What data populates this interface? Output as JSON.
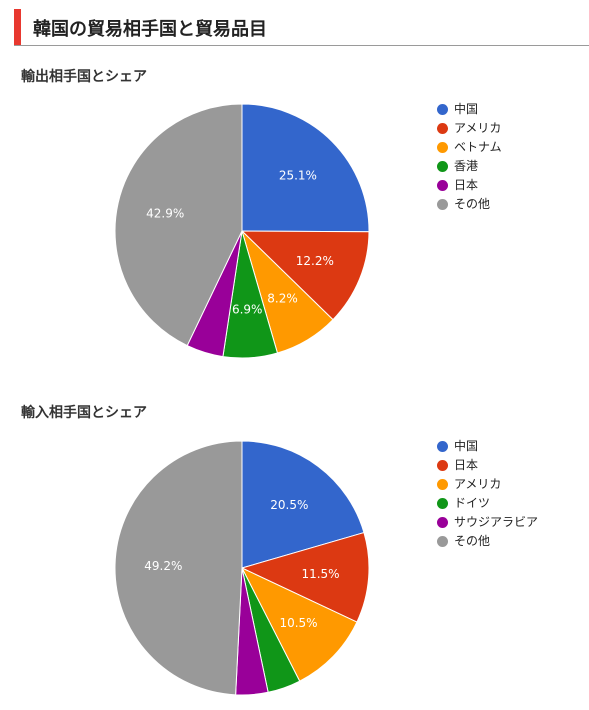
{
  "header": {
    "title": "韓国の貿易相手国と貿易品目"
  },
  "chart_data": [
    {
      "type": "pie",
      "title": "輸出相手国とシェア",
      "legend_position": "right",
      "slices": [
        {
          "label": "中国",
          "value": 25.1,
          "color": "#3366cc",
          "value_label": "25.1%"
        },
        {
          "label": "アメリカ",
          "value": 12.2,
          "color": "#dc3912",
          "value_label": "12.2%"
        },
        {
          "label": "ベトナム",
          "value": 8.2,
          "color": "#ff9900",
          "value_label": "8.2%"
        },
        {
          "label": "香港",
          "value": 6.9,
          "color": "#109618",
          "value_label": "6.9%"
        },
        {
          "label": "日本",
          "value": 4.7,
          "color": "#990099",
          "value_label": ""
        },
        {
          "label": "その他",
          "value": 42.9,
          "color": "#999999",
          "value_label": "42.9%"
        }
      ]
    },
    {
      "type": "pie",
      "title": "輸入相手国とシェア",
      "legend_position": "right",
      "slices": [
        {
          "label": "中国",
          "value": 20.5,
          "color": "#3366cc",
          "value_label": "20.5%"
        },
        {
          "label": "日本",
          "value": 11.5,
          "color": "#dc3912",
          "value_label": "11.5%"
        },
        {
          "label": "アメリカ",
          "value": 10.5,
          "color": "#ff9900",
          "value_label": "10.5%"
        },
        {
          "label": "ドイツ",
          "value": 4.2,
          "color": "#109618",
          "value_label": ""
        },
        {
          "label": "サウジアラビア",
          "value": 4.1,
          "color": "#990099",
          "value_label": ""
        },
        {
          "label": "その他",
          "value": 49.2,
          "color": "#999999",
          "value_label": "49.2%"
        }
      ]
    }
  ]
}
